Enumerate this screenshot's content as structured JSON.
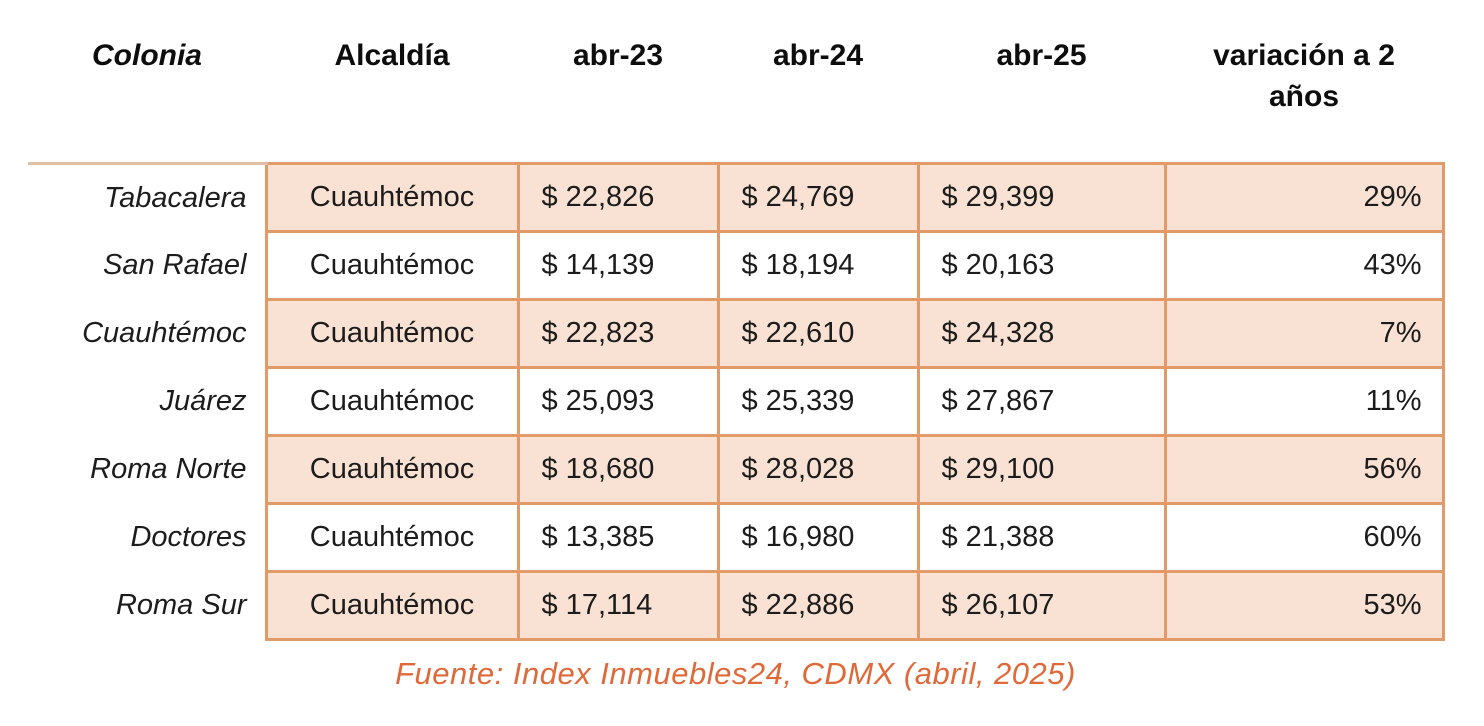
{
  "chart_data": {
    "type": "table",
    "columns": [
      "Colonia",
      "Alcaldía",
      "abr-23",
      "abr-24",
      "abr-25",
      "variación a 2 años"
    ],
    "rows": [
      {
        "cells": [
          "Tabacalera",
          "Cuauhtémoc",
          "$ 22,826",
          "$ 24,769",
          "$ 29,399",
          "29%"
        ]
      },
      {
        "cells": [
          "San Rafael",
          "Cuauhtémoc",
          "$ 14,139",
          "$ 18,194",
          "$ 20,163",
          "43%"
        ]
      },
      {
        "cells": [
          "Cuauhtémoc",
          "Cuauhtémoc",
          "$ 22,823",
          "$ 22,610",
          "$ 24,328",
          "7%"
        ]
      },
      {
        "cells": [
          "Juárez",
          "Cuauhtémoc",
          "$ 25,093",
          "$ 25,339",
          "$ 27,867",
          "11%"
        ]
      },
      {
        "cells": [
          "Roma Norte",
          "Cuauhtémoc",
          "$ 18,680",
          "$ 28,028",
          "$ 29,100",
          "56%"
        ]
      },
      {
        "cells": [
          "Doctores",
          "Cuauhtémoc",
          "$ 13,385",
          "$ 16,980",
          "$ 21,388",
          "60%"
        ]
      },
      {
        "cells": [
          "Roma Sur",
          "Cuauhtémoc",
          "$ 17,114",
          "$ 22,886",
          "$ 26,107",
          "53%"
        ]
      }
    ],
    "numeric": {
      "categories": [
        "Tabacalera",
        "San Rafael",
        "Cuauhtémoc",
        "Juárez",
        "Roma Norte",
        "Doctores",
        "Roma Sur"
      ],
      "alcaldia": [
        "Cuauhtémoc",
        "Cuauhtémoc",
        "Cuauhtémoc",
        "Cuauhtémoc",
        "Cuauhtémoc",
        "Cuauhtémoc",
        "Cuauhtémoc"
      ],
      "series": [
        {
          "name": "abr-23",
          "values": [
            22826,
            14139,
            22823,
            25093,
            18680,
            13385,
            17114
          ]
        },
        {
          "name": "abr-24",
          "values": [
            24769,
            18194,
            22610,
            25339,
            28028,
            16980,
            22886
          ]
        },
        {
          "name": "abr-25",
          "values": [
            29399,
            20163,
            24328,
            27867,
            29100,
            21388,
            26107
          ]
        },
        {
          "name": "variación a 2 años (%)",
          "values": [
            29,
            43,
            7,
            11,
            56,
            60,
            53
          ]
        }
      ]
    },
    "source_note": "Fuente: Index Inmuebles24, CDMX (abril, 2025)"
  },
  "colors": {
    "row_fill": "#f9e2d3",
    "cell_border": "#e29a69",
    "first_col_top_border": "#dfc0a6",
    "source_note_text": "#e0693a",
    "body_text": "#1c1c1c"
  }
}
